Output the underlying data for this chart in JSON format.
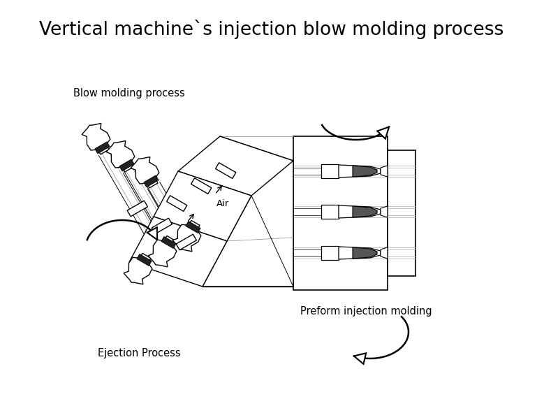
{
  "title": "Vertical machine`s injection blow molding process",
  "title_fontsize": 19,
  "label_blow": "Blow molding process",
  "label_preform": "Preform injection molding",
  "label_ejection": "Ejection Process",
  "label_air": "Air",
  "bg_color": "#ffffff",
  "line_color": "#000000",
  "fig_width": 7.79,
  "fig_height": 5.91,
  "dpi": 100
}
